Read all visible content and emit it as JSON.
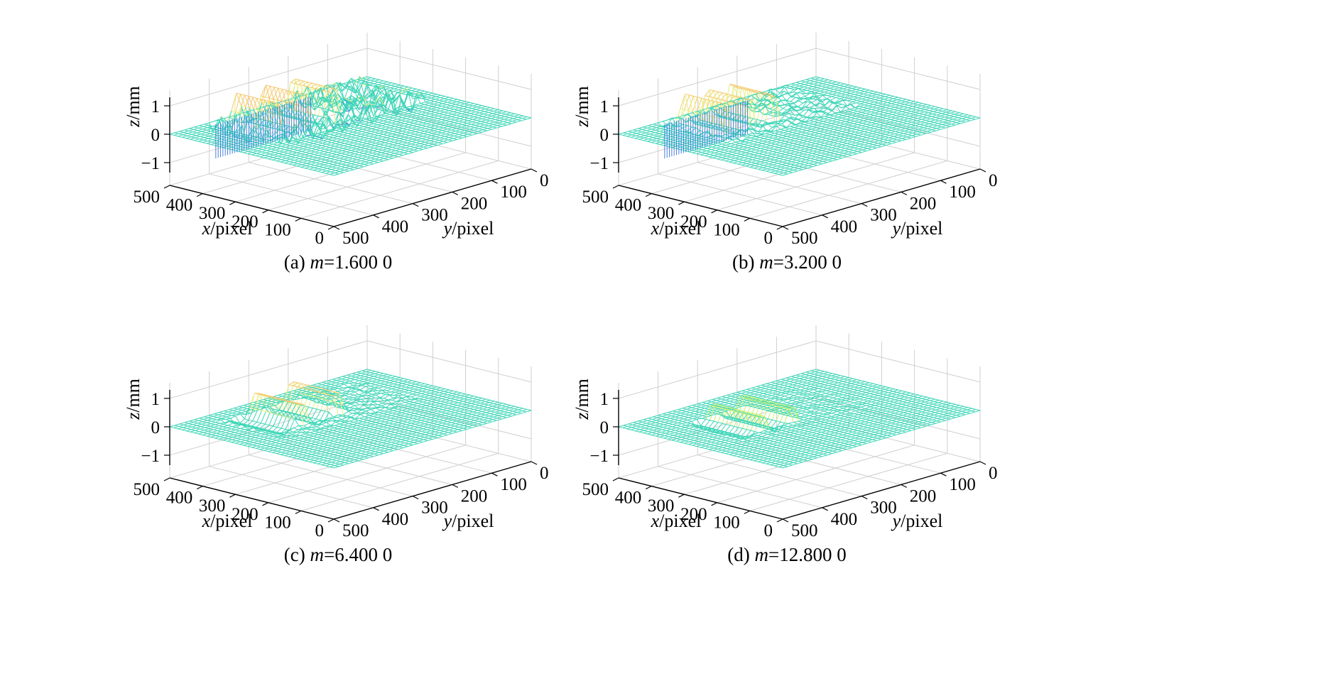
{
  "figure": {
    "panels": [
      {
        "id": "a",
        "caption_prefix": "(a) ",
        "caption_var": "m",
        "caption_value": "=1.600 0",
        "m": 1.6,
        "xlabel_var": "x",
        "xlabel_unit": "/pixel",
        "ylabel_var": "y",
        "ylabel_unit": "/pixel",
        "zlabel_var": "z",
        "zlabel_unit": "/mm",
        "x_ticks": [
          "0",
          "100",
          "200",
          "300",
          "400",
          "500"
        ],
        "y_ticks": [
          "0",
          "100",
          "200",
          "300",
          "400",
          "500"
        ],
        "z_ticks": [
          "1",
          "0",
          "−1"
        ]
      },
      {
        "id": "b",
        "caption_prefix": "(b) ",
        "caption_var": "m",
        "caption_value": "=3.200 0",
        "m": 3.2,
        "xlabel_var": "x",
        "xlabel_unit": "/pixel",
        "ylabel_var": "y",
        "ylabel_unit": "/pixel",
        "zlabel_var": "z",
        "zlabel_unit": "/mm",
        "x_ticks": [
          "0",
          "100",
          "200",
          "300",
          "400",
          "500"
        ],
        "y_ticks": [
          "0",
          "100",
          "200",
          "300",
          "400",
          "500"
        ],
        "z_ticks": [
          "1",
          "0",
          "−1"
        ]
      },
      {
        "id": "c",
        "caption_prefix": "(c) ",
        "caption_var": "m",
        "caption_value": "=6.400 0",
        "m": 6.4,
        "xlabel_var": "x",
        "xlabel_unit": "/pixel",
        "ylabel_var": "y",
        "ylabel_unit": "/pixel",
        "zlabel_var": "z",
        "zlabel_unit": "/mm",
        "x_ticks": [
          "0",
          "100",
          "200",
          "300",
          "400",
          "500"
        ],
        "y_ticks": [
          "0",
          "100",
          "200",
          "300",
          "400",
          "500"
        ],
        "z_ticks": [
          "1",
          "0",
          "−1"
        ]
      },
      {
        "id": "d",
        "caption_prefix": "(d) ",
        "caption_var": "m",
        "caption_value": "=12.800 0",
        "m": 12.8,
        "xlabel_var": "x",
        "xlabel_unit": "/pixel",
        "ylabel_var": "y",
        "ylabel_unit": "/pixel",
        "zlabel_var": "z",
        "zlabel_unit": "/mm",
        "x_ticks": [
          "0",
          "100",
          "200",
          "300",
          "400",
          "500"
        ],
        "y_ticks": [
          "0",
          "100",
          "200",
          "300",
          "400",
          "500"
        ],
        "z_ticks": [
          "1",
          "0",
          "−1"
        ]
      }
    ]
  },
  "chart_data": [
    {
      "type": "surface3d",
      "panel": "a",
      "x_range": [
        0,
        500
      ],
      "y_range": [
        0,
        500
      ],
      "z_range": [
        -1,
        1
      ],
      "grid": true,
      "colors": {
        "base": "#3fd6b8",
        "ridge_high": "#f5c86e",
        "ridge_mid": "#e8f08a",
        "trough": "#4a7fe0",
        "grid": "#cfcfcf"
      },
      "ridges": {
        "count": 5,
        "x_range": [
          330,
          470
        ],
        "y_range": [
          200,
          380
        ],
        "height": 1.0,
        "trough_depth": -1.2
      },
      "noise_level": 0.35
    },
    {
      "type": "surface3d",
      "panel": "b",
      "x_range": [
        0,
        500
      ],
      "y_range": [
        0,
        500
      ],
      "z_range": [
        -1,
        1
      ],
      "grid": true,
      "colors": {
        "base": "#3fd6b8",
        "ridge_high": "#f5c86e",
        "ridge_mid": "#e8f08a",
        "trough": "#4a7fe0",
        "grid": "#cfcfcf"
      },
      "ridges": {
        "count": 5,
        "x_range": [
          330,
          470
        ],
        "y_range": [
          230,
          380
        ],
        "height": 1.0,
        "trough_depth": -1.2
      },
      "noise_level": 0.12
    },
    {
      "type": "surface3d",
      "panel": "c",
      "x_range": [
        0,
        500
      ],
      "y_range": [
        0,
        500
      ],
      "z_range": [
        -1,
        1
      ],
      "grid": true,
      "colors": {
        "base": "#3fd6b8",
        "ridge_high": "#f5c86e",
        "ridge_mid": "#e8f08a",
        "trough": "#4a9fe0",
        "grid": "#cfcfcf"
      },
      "ridges": {
        "count": 4,
        "x_range": [
          300,
          440
        ],
        "y_range": [
          220,
          400
        ],
        "height": 0.75,
        "trough_depth": -0.35
      },
      "noise_level": 0.05
    },
    {
      "type": "surface3d",
      "panel": "d",
      "x_range": [
        0,
        500
      ],
      "y_range": [
        0,
        500
      ],
      "z_range": [
        -1,
        1
      ],
      "grid": true,
      "colors": {
        "base": "#3fd6b8",
        "ridge_high": "#f5b060",
        "ridge_mid": "#c8f070",
        "trough": "#4a9fe0",
        "grid": "#cfcfcf"
      },
      "ridges": {
        "count": 4,
        "x_range": [
          250,
          400
        ],
        "y_range": [
          250,
          400
        ],
        "height": 0.5,
        "trough_depth": -0.3
      },
      "noise_level": 0.02
    }
  ]
}
